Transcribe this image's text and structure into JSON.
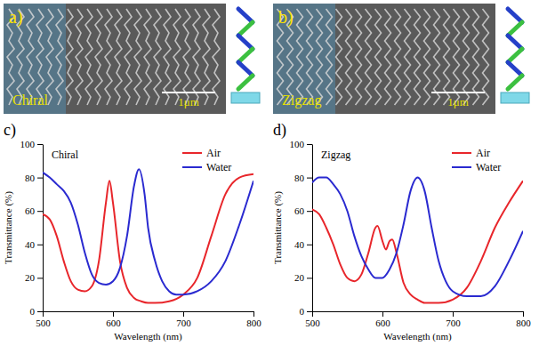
{
  "images": [
    {
      "panel_label": "a)",
      "label": "Chiral",
      "scale_bar": "1μm"
    },
    {
      "panel_label": "b)",
      "label": "Zigzag",
      "scale_bar": "1μm"
    }
  ],
  "chart_data": [
    {
      "type": "line",
      "panel_label": "c)",
      "title": "Chiral",
      "x_label": "Wavelength (nm)",
      "y_label": "Transmittance (%)",
      "xlim": [
        500,
        800
      ],
      "xticks": [
        500,
        600,
        700,
        800
      ],
      "ylim": [
        0,
        100
      ],
      "yticks": [
        0,
        20,
        40,
        60,
        80,
        100
      ],
      "legend": "upper right",
      "series": [
        {
          "name": "Air",
          "color": "#e8262b",
          "x": [
            500,
            510,
            520,
            530,
            540,
            550,
            560,
            570,
            580,
            590,
            595,
            600,
            610,
            620,
            630,
            640,
            650,
            660,
            680,
            700,
            720,
            740,
            760,
            780,
            800
          ],
          "values": [
            58,
            55,
            45,
            30,
            18,
            13,
            12,
            15,
            30,
            65,
            78,
            65,
            30,
            14,
            8,
            6,
            5,
            5,
            6,
            10,
            20,
            45,
            70,
            80,
            82
          ]
        },
        {
          "name": "Water",
          "color": "#2a2ad0",
          "x": [
            500,
            510,
            520,
            530,
            540,
            550,
            560,
            570,
            580,
            590,
            600,
            610,
            620,
            630,
            637,
            645,
            650,
            660,
            670,
            680,
            690,
            700,
            720,
            740,
            760,
            780,
            800
          ],
          "values": [
            83,
            80,
            76,
            72,
            65,
            52,
            35,
            22,
            17,
            16,
            18,
            26,
            45,
            75,
            85,
            70,
            50,
            30,
            18,
            12,
            10,
            10,
            12,
            18,
            30,
            52,
            78
          ]
        }
      ]
    },
    {
      "type": "line",
      "panel_label": "d)",
      "title": "Zigzag",
      "x_label": "Wavelength (nm)",
      "y_label": "Transmittance (%)",
      "xlim": [
        500,
        800
      ],
      "xticks": [
        500,
        600,
        700,
        800
      ],
      "ylim": [
        0,
        100
      ],
      "yticks": [
        0,
        20,
        40,
        60,
        80,
        100
      ],
      "legend": "upper right",
      "series": [
        {
          "name": "Air",
          "color": "#e8262b",
          "x": [
            500,
            510,
            520,
            530,
            540,
            550,
            560,
            570,
            580,
            590,
            593,
            600,
            605,
            610,
            614,
            620,
            630,
            640,
            650,
            660,
            680,
            700,
            720,
            740,
            760,
            780,
            800
          ],
          "values": [
            61,
            58,
            50,
            40,
            28,
            20,
            18,
            22,
            35,
            50,
            51,
            42,
            37,
            42,
            43,
            35,
            17,
            10,
            7,
            5,
            5,
            7,
            14,
            30,
            50,
            65,
            78
          ]
        },
        {
          "name": "Water",
          "color": "#2a2ad0",
          "x": [
            500,
            510,
            520,
            530,
            540,
            550,
            560,
            570,
            580,
            590,
            600,
            610,
            620,
            630,
            640,
            650,
            660,
            670,
            680,
            690,
            700,
            720,
            740,
            760,
            780,
            800
          ],
          "values": [
            77,
            80,
            80,
            76,
            70,
            60,
            45,
            33,
            25,
            20,
            20,
            25,
            35,
            52,
            72,
            80,
            72,
            50,
            30,
            18,
            12,
            9,
            9,
            15,
            30,
            48
          ]
        }
      ]
    }
  ]
}
